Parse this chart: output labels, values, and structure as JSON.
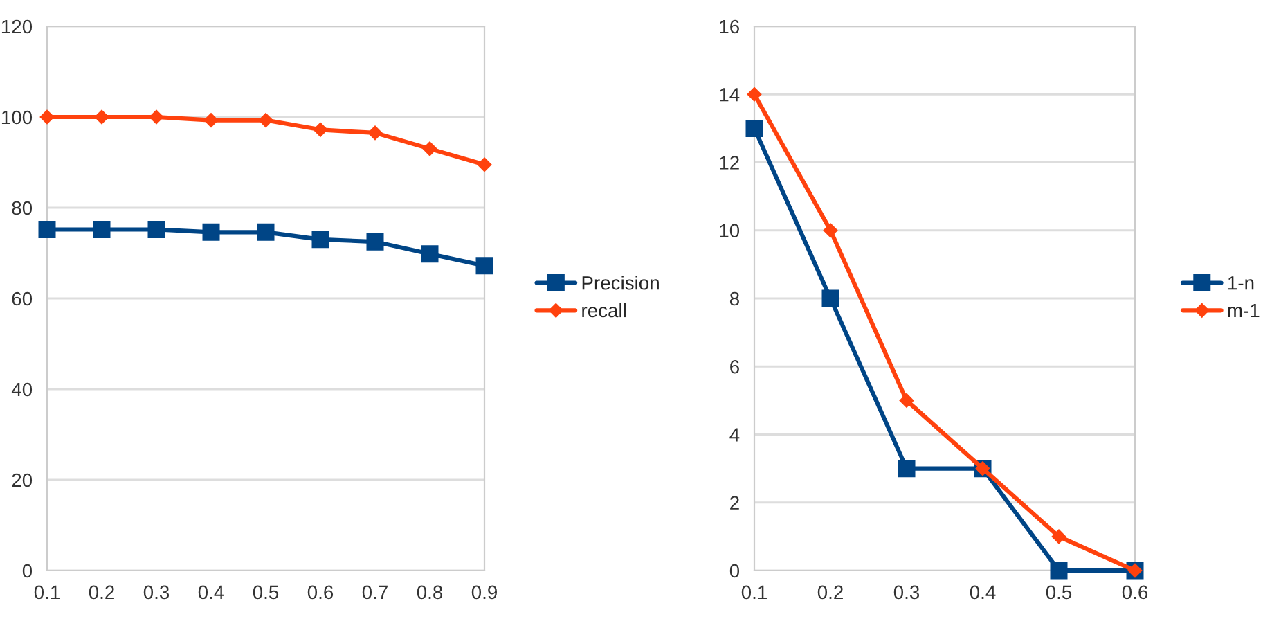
{
  "chart_data": [
    {
      "type": "line",
      "categories": [
        "0.1",
        "0.2",
        "0.3",
        "0.4",
        "0.5",
        "0.6",
        "0.7",
        "0.8",
        "0.9"
      ],
      "ylim": [
        0,
        120
      ],
      "yticks": [
        0,
        20,
        40,
        60,
        80,
        100,
        120
      ],
      "grid": "y",
      "legend": "right",
      "series": [
        {
          "name": "Precision",
          "color": "#004586",
          "marker": "square",
          "values": [
            75.2,
            75.2,
            75.2,
            74.6,
            74.6,
            73,
            72.5,
            69.8,
            67.2
          ]
        },
        {
          "name": "recall",
          "color": "#ff420e",
          "marker": "diamond",
          "values": [
            100,
            100,
            100,
            99.3,
            99.3,
            97.2,
            96.5,
            93,
            89.5
          ]
        }
      ]
    },
    {
      "type": "line",
      "categories": [
        "0.1",
        "0.2",
        "0.3",
        "0.4",
        "0.5",
        "0.6"
      ],
      "ylim": [
        0,
        16
      ],
      "yticks": [
        0,
        2,
        4,
        6,
        8,
        10,
        12,
        14,
        16
      ],
      "grid": "y",
      "legend": "right",
      "series": [
        {
          "name": "1-n",
          "color": "#004586",
          "marker": "square",
          "values": [
            13,
            8,
            3,
            3,
            0,
            0
          ]
        },
        {
          "name": "m-1",
          "color": "#ff420e",
          "marker": "diamond",
          "values": [
            14,
            10,
            5,
            3,
            1,
            0
          ]
        }
      ]
    }
  ]
}
